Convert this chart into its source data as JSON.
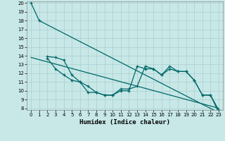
{
  "title": "",
  "xlabel": "Humidex (Indice chaleur)",
  "background_color": "#c8e8e8",
  "grid_color": "#aacece",
  "line_color": "#006868",
  "xlim": [
    -0.5,
    23.5
  ],
  "ylim": [
    7.8,
    20.2
  ],
  "xticks": [
    0,
    1,
    2,
    3,
    4,
    5,
    6,
    7,
    8,
    9,
    10,
    11,
    12,
    13,
    14,
    15,
    16,
    17,
    18,
    19,
    20,
    21,
    22,
    23
  ],
  "yticks": [
    8,
    9,
    10,
    11,
    12,
    13,
    14,
    15,
    16,
    17,
    18,
    19,
    20
  ],
  "xlabel_fontsize": 6.5,
  "tick_fontsize": 5.0,
  "s1x": [
    0,
    1,
    23
  ],
  "s1y": [
    20,
    18,
    7.5
  ],
  "s2x": [
    2,
    3,
    4,
    5,
    6,
    7,
    8,
    9,
    10,
    11,
    12,
    13,
    14,
    15,
    16,
    17,
    18,
    19,
    20,
    21,
    22,
    23
  ],
  "s2y": [
    13.9,
    13.8,
    13.5,
    11.8,
    11.0,
    10.5,
    9.8,
    9.5,
    9.5,
    10.0,
    10.0,
    12.8,
    12.5,
    12.5,
    11.8,
    12.8,
    12.2,
    12.2,
    11.2,
    9.5,
    9.5,
    7.5
  ],
  "s3x": [
    2,
    3,
    4,
    5,
    6,
    7,
    8,
    9,
    10,
    11,
    12,
    13,
    14,
    15,
    16,
    17,
    18,
    19,
    20,
    21,
    22,
    23
  ],
  "s3y": [
    13.7,
    12.5,
    11.8,
    11.2,
    11.0,
    9.8,
    9.8,
    9.5,
    9.5,
    10.2,
    10.2,
    10.5,
    12.8,
    12.5,
    11.8,
    12.5,
    12.2,
    12.2,
    11.2,
    9.5,
    9.5,
    7.8
  ],
  "s4x": [
    0,
    23
  ],
  "s4y": [
    13.8,
    8.0
  ]
}
